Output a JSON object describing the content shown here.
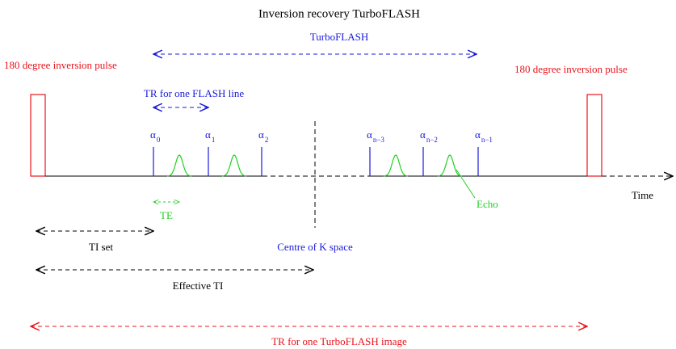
{
  "title": "Inversion recovery TurboFLASH",
  "turboflash_label": "TurboFLASH",
  "inversion_pulse_left": "180 degree inversion pulse",
  "inversion_pulse_right": "180 degree inversion pulse",
  "tr_flash_line": "TR for one FLASH line",
  "pulses": [
    {
      "symbol": "α",
      "subscript": "0"
    },
    {
      "symbol": "α",
      "subscript": "1"
    },
    {
      "symbol": "α",
      "subscript": "2"
    },
    {
      "symbol": "α",
      "subscript": "n−3"
    },
    {
      "symbol": "α",
      "subscript": "n−2"
    },
    {
      "symbol": "α",
      "subscript": "n−1"
    }
  ],
  "time_label": "Time",
  "echo_label": "Echo",
  "te_label": "TE",
  "ti_set_label": "TI set",
  "centre_label": "Centre of K space",
  "effective_ti_label": "Effective TI",
  "tr_image_label": "TR for one TurboFLASH image"
}
